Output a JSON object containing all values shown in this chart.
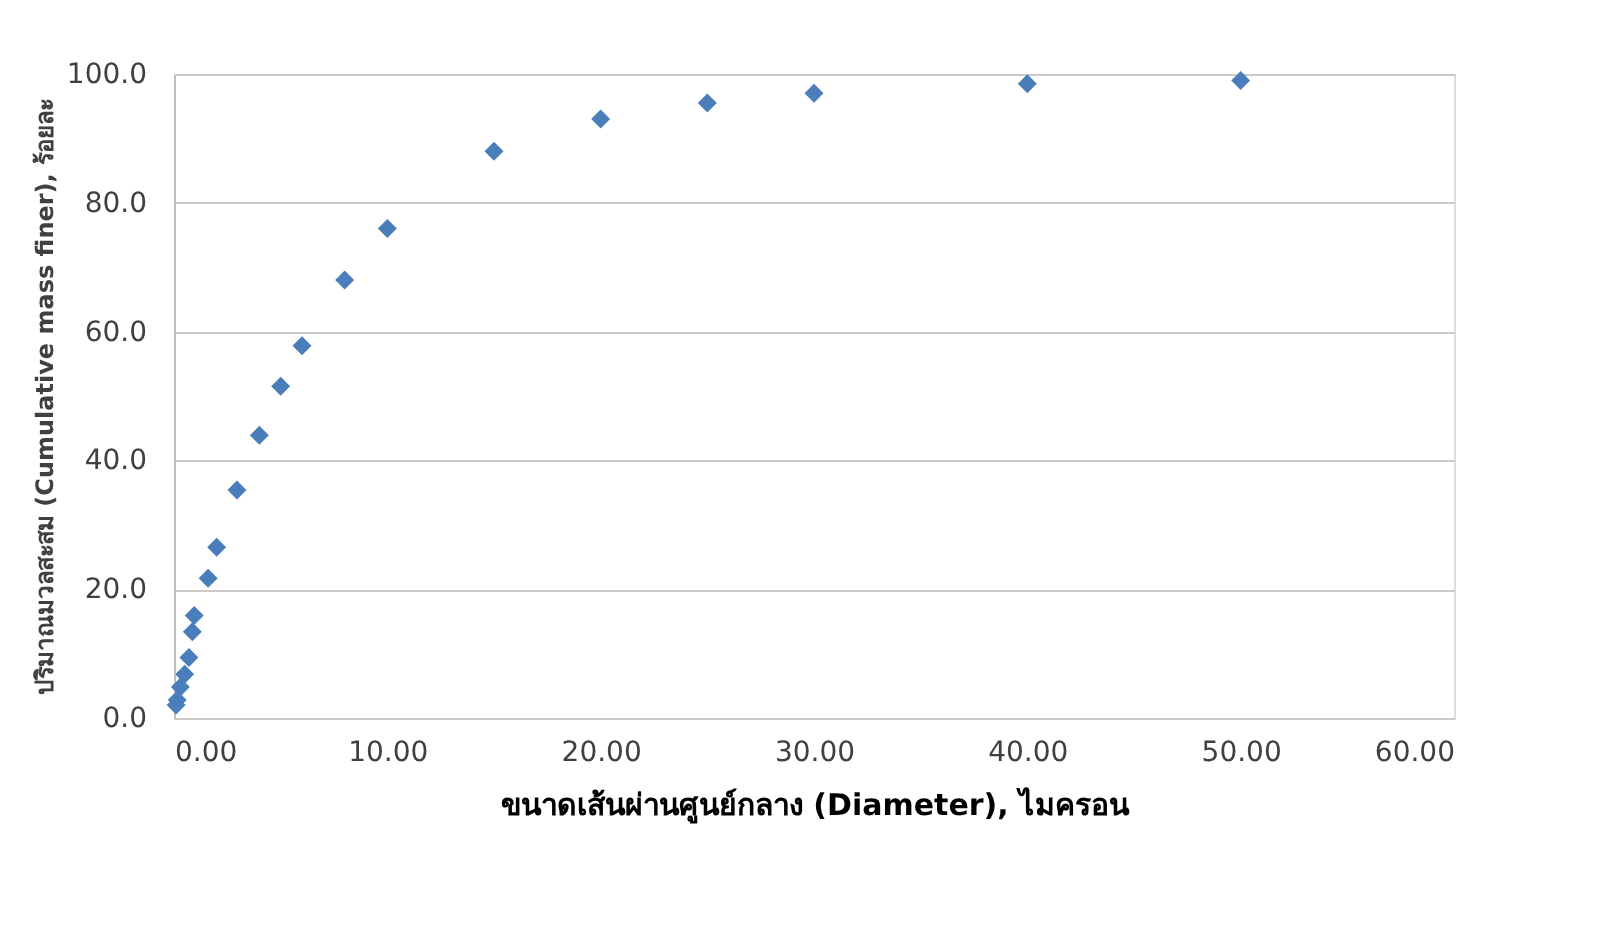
{
  "chart_data": {
    "type": "scatter",
    "xlabel": "ขนาดเส้นผ่านศูนย์กลาง (Diameter), ไมครอน",
    "ylabel": "ปริมาณมวลสะสม (Cumulative mass finer), ร้อยละ",
    "x": [
      0.1,
      0.15,
      0.3,
      0.5,
      0.7,
      0.86,
      0.95,
      1.6,
      2.0,
      2.95,
      4.0,
      5.0,
      6.0,
      8.0,
      10,
      15,
      20,
      25,
      30,
      40,
      50
    ],
    "series": [
      {
        "color": "#4a7ebb",
        "values": [
          2,
          2.8,
          4.8,
          6.8,
          9.4,
          13.4,
          15.9,
          21.7,
          26.5,
          35.4,
          43.9,
          51.5,
          57.8,
          68,
          76,
          88,
          93,
          95.5,
          97,
          98.5,
          99
        ]
      }
    ],
    "xlim": [
      0,
      60
    ],
    "ylim": [
      0,
      100
    ],
    "xticks": [
      {
        "value": 0,
        "label": "0.00"
      },
      {
        "value": 10,
        "label": "10.00"
      },
      {
        "value": 20,
        "label": "20.00"
      },
      {
        "value": 30,
        "label": "30.00"
      },
      {
        "value": 40,
        "label": "40.00"
      },
      {
        "value": 50,
        "label": "50.00"
      },
      {
        "value": 60,
        "label": "60.00"
      }
    ],
    "yticks": [
      {
        "value": 0,
        "label": "0.0"
      },
      {
        "value": 20,
        "label": "20.0"
      },
      {
        "value": 40,
        "label": "40.0"
      },
      {
        "value": 60,
        "label": "60.0"
      },
      {
        "value": 80,
        "label": "80.0"
      },
      {
        "value": 100,
        "label": "100.0"
      }
    ],
    "grid": "y",
    "marker": "diamond"
  }
}
